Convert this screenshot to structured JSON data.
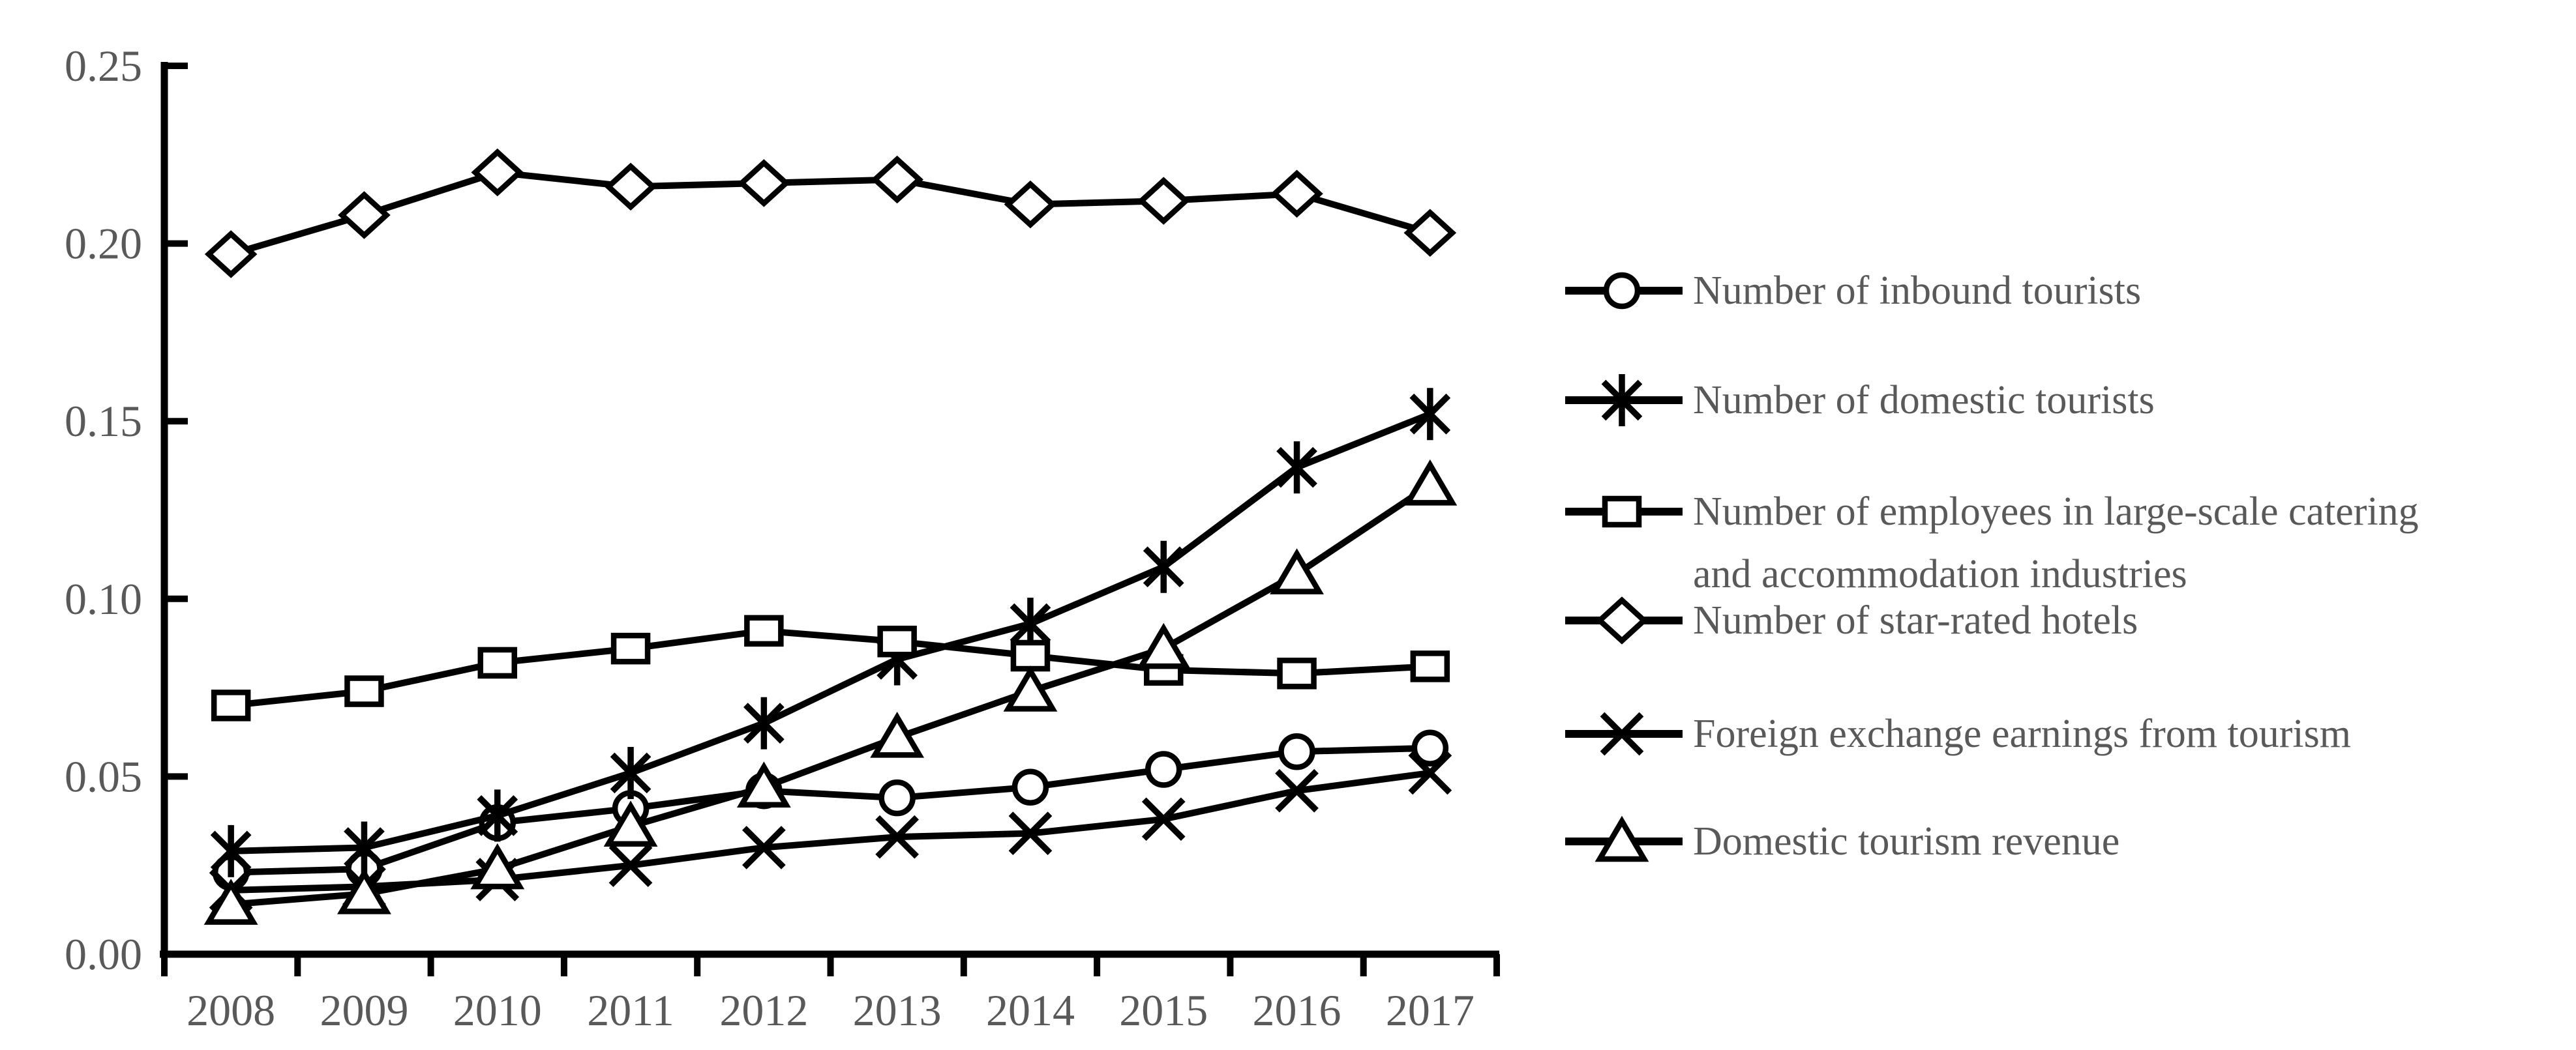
{
  "page": {
    "background": "#ffffff",
    "title": ""
  },
  "colors": {
    "line": "#000000",
    "axis": "#000000",
    "marker_fill": "#ffffff",
    "label_text": "#595959"
  },
  "chart_data": {
    "type": "line",
    "title": "",
    "xlabel": "",
    "ylabel": "",
    "grid": false,
    "legend_position": "right",
    "ylim": [
      0,
      0.25
    ],
    "ytick_labels": [
      "0.00",
      "0.05",
      "0.10",
      "0.15",
      "0.20",
      "0.25"
    ],
    "ytick_values": [
      0,
      0.05,
      0.1,
      0.15,
      0.2,
      0.25
    ],
    "categories": [
      "2008",
      "2009",
      "2010",
      "2011",
      "2012",
      "2013",
      "2014",
      "2015",
      "2016",
      "2017"
    ],
    "series": [
      {
        "id": "inbound-tourists",
        "name": "Number of inbound tourists",
        "legend_lines": [
          "Number of inbound tourists"
        ],
        "marker": "circle",
        "values": [
          0.023,
          0.024,
          0.037,
          0.041,
          0.046,
          0.044,
          0.047,
          0.052,
          0.057,
          0.058
        ]
      },
      {
        "id": "domestic-tourists",
        "name": "Number of domestic tourists",
        "legend_lines": [
          "Number of domestic tourists"
        ],
        "marker": "asterisk",
        "values": [
          0.029,
          0.03,
          0.039,
          0.051,
          0.065,
          0.083,
          0.093,
          0.109,
          0.137,
          0.152
        ]
      },
      {
        "id": "employees-catering-accommodation",
        "name": "Number of employees in large-scale catering and accommodation industries",
        "legend_lines": [
          "Number of employees in large-scale catering",
          "and accommodation industries"
        ],
        "marker": "square",
        "values": [
          0.07,
          0.074,
          0.082,
          0.086,
          0.091,
          0.088,
          0.084,
          0.08,
          0.079,
          0.081
        ]
      },
      {
        "id": "star-rated-hotels",
        "name": "Number of star-rated hotels",
        "legend_lines": [
          "Number of star-rated hotels"
        ],
        "marker": "diamond",
        "values": [
          0.197,
          0.208,
          0.22,
          0.216,
          0.217,
          0.218,
          0.211,
          0.212,
          0.214,
          0.203
        ]
      },
      {
        "id": "foreign-exchange-earnings",
        "name": "Foreign exchange earnings from tourism",
        "legend_lines": [
          "Foreign exchange earnings from tourism"
        ],
        "marker": "x",
        "values": [
          0.018,
          0.019,
          0.021,
          0.025,
          0.03,
          0.033,
          0.034,
          0.038,
          0.046,
          0.051
        ]
      },
      {
        "id": "domestic-tourism-revenue",
        "name": "Domestic tourism revenue",
        "legend_lines": [
          "Domestic tourism revenue"
        ],
        "marker": "triangle",
        "values": [
          0.014,
          0.017,
          0.024,
          0.036,
          0.047,
          0.061,
          0.074,
          0.086,
          0.107,
          0.132
        ]
      }
    ],
    "legend_order": [
      "inbound-tourists",
      "domestic-tourists",
      "employees-catering-accommodation",
      "star-rated-hotels",
      "foreign-exchange-earnings",
      "domestic-tourism-revenue"
    ]
  }
}
